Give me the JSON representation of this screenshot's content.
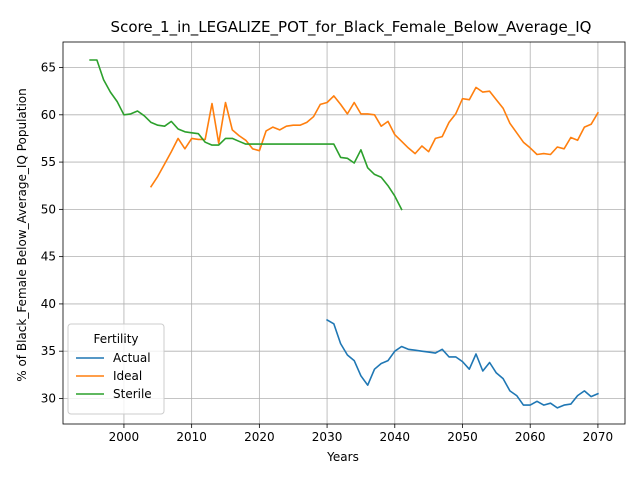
{
  "chart_data": {
    "type": "line",
    "title": "Score_1_in_LEGALIZE_POT_for_Black_Female_Below_Average_IQ",
    "xlabel": "Years",
    "ylabel": "% of Black_Female Below_Average_IQ Population",
    "xlim": [
      1991,
      2074
    ],
    "ylim": [
      27.3,
      67.7
    ],
    "xticks": [
      2000,
      2010,
      2020,
      2030,
      2040,
      2050,
      2060,
      2070
    ],
    "yticks": [
      30,
      35,
      40,
      45,
      50,
      55,
      60,
      65
    ],
    "grid": true,
    "legend": {
      "title": "Fertility",
      "position": "lower left"
    },
    "series": [
      {
        "name": "Actual",
        "color": "#1f77b4",
        "x": [
          2030,
          2031,
          2032,
          2033,
          2034,
          2035,
          2036,
          2037,
          2038,
          2039,
          2040,
          2041,
          2042,
          2043,
          2044,
          2045,
          2046,
          2047,
          2048,
          2049,
          2050,
          2051,
          2052,
          2053,
          2054,
          2055,
          2056,
          2057,
          2058,
          2059,
          2060,
          2061,
          2062,
          2063,
          2064,
          2065,
          2066,
          2067,
          2068,
          2069,
          2070
        ],
        "y": [
          38.3,
          37.9,
          35.8,
          34.6,
          34.0,
          32.4,
          31.4,
          33.1,
          33.7,
          34.0,
          35.0,
          35.5,
          35.2,
          35.1,
          35.0,
          34.9,
          34.8,
          35.2,
          34.4,
          34.4,
          33.9,
          33.1,
          34.7,
          32.9,
          33.8,
          32.7,
          32.1,
          30.8,
          30.3,
          29.3,
          29.3,
          29.7,
          29.3,
          29.5,
          29.0,
          29.3,
          29.4,
          30.3,
          30.8,
          30.2,
          30.5
        ]
      },
      {
        "name": "Ideal",
        "color": "#ff7f0e",
        "x": [
          2004,
          2005,
          2006,
          2007,
          2008,
          2009,
          2010,
          2011,
          2012,
          2013,
          2014,
          2015,
          2016,
          2017,
          2018,
          2019,
          2020,
          2021,
          2022,
          2023,
          2024,
          2025,
          2026,
          2027,
          2028,
          2029,
          2030,
          2031,
          2032,
          2033,
          2034,
          2035,
          2036,
          2037,
          2038,
          2039,
          2040,
          2041,
          2042,
          2043,
          2044,
          2045,
          2046,
          2047,
          2048,
          2049,
          2050,
          2051,
          2052,
          2053,
          2054,
          2055,
          2056,
          2057,
          2058,
          2059,
          2060,
          2061,
          2062,
          2063,
          2064,
          2065,
          2066,
          2067,
          2068,
          2069,
          2070
        ],
        "y": [
          52.4,
          53.5,
          54.8,
          56.1,
          57.5,
          56.4,
          57.5,
          57.4,
          57.4,
          61.2,
          57.0,
          61.3,
          58.4,
          57.8,
          57.3,
          56.4,
          56.2,
          58.3,
          58.7,
          58.4,
          58.8,
          58.9,
          58.9,
          59.2,
          59.8,
          61.1,
          61.3,
          62.0,
          61.1,
          60.1,
          61.3,
          60.1,
          60.1,
          60.0,
          58.8,
          59.3,
          57.9,
          57.2,
          56.5,
          55.9,
          56.7,
          56.1,
          57.5,
          57.7,
          59.2,
          60.1,
          61.7,
          61.6,
          62.9,
          62.4,
          62.5,
          61.6,
          60.7,
          59.1,
          58.1,
          57.1,
          56.5,
          55.8,
          55.9,
          55.8,
          56.6,
          56.4,
          57.6,
          57.3,
          58.7,
          59.0,
          60.2
        ]
      },
      {
        "name": "Sterile",
        "color": "#2ca02c",
        "x": [
          1995,
          1996,
          1997,
          1998,
          1999,
          2000,
          2001,
          2002,
          2003,
          2004,
          2005,
          2006,
          2007,
          2008,
          2009,
          2010,
          2011,
          2012,
          2013,
          2014,
          2015,
          2016,
          2017,
          2018,
          2019,
          2020,
          2021,
          2022,
          2023,
          2024,
          2025,
          2026,
          2027,
          2028,
          2029,
          2030,
          2031,
          2032,
          2033,
          2034,
          2035,
          2036,
          2037,
          2038,
          2039,
          2040,
          2041
        ],
        "y": [
          65.8,
          65.8,
          63.7,
          62.4,
          61.4,
          60.0,
          60.1,
          60.4,
          59.9,
          59.2,
          58.9,
          58.8,
          59.3,
          58.5,
          58.2,
          58.1,
          58.0,
          57.1,
          56.8,
          56.8,
          57.5,
          57.5,
          57.2,
          56.9,
          56.9,
          56.9,
          56.9,
          56.9,
          56.9,
          56.9,
          56.9,
          56.9,
          56.9,
          56.9,
          56.9,
          56.9,
          56.9,
          55.5,
          55.4,
          54.9,
          56.3,
          54.4,
          53.7,
          53.4,
          52.5,
          51.4,
          50.0
        ]
      }
    ]
  }
}
